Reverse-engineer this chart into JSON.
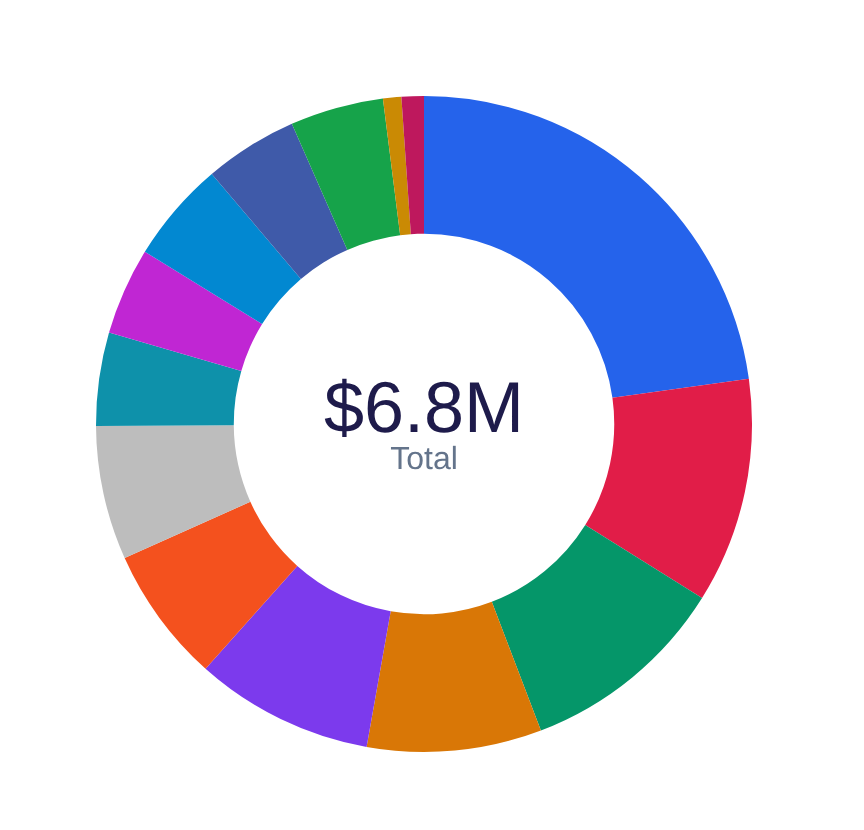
{
  "chart_data": {
    "type": "donut",
    "categories": [
      null,
      null,
      null,
      null,
      null,
      null,
      null,
      null,
      null,
      null,
      null,
      null,
      null,
      null
    ],
    "values": [
      22.8,
      11.1,
      10.3,
      8.6,
      8.8,
      6.7,
      6.6,
      4.6,
      4.3,
      5.0,
      4.6,
      4.6,
      0.9,
      1.1
    ],
    "colors": [
      "#2563eb",
      "#e11d48",
      "#059669",
      "#d97706",
      "#7c3aed",
      "#f4511e",
      "#bdbdbd",
      "#0e91aa",
      "#c026d3",
      "#0288d1",
      "#3f5aa9",
      "#16a34a",
      "#ca8a04",
      "#be185d"
    ],
    "annotations": [
      "$6.8M",
      "Total"
    ],
    "legend": false
  }
}
